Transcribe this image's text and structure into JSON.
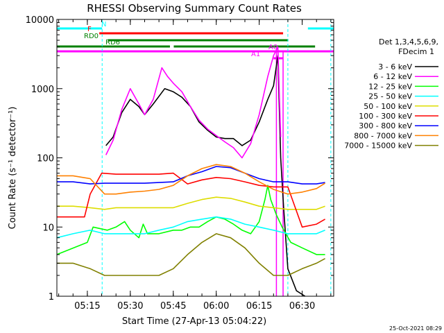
{
  "chart_data": {
    "type": "line",
    "title": "RHESSI Observing Summary Count Rates",
    "xlabel": "Start Time (27-Apr-13 05:04:22)",
    "ylabel": "Count Rate (s⁻¹ detector⁻¹)",
    "yscale": "log",
    "ylim": [
      1,
      10000
    ],
    "xlim": [
      "05:04:22",
      "06:41:00"
    ],
    "x_ticks": [
      "05:15",
      "05:30",
      "05:45",
      "06:00",
      "06:15",
      "06:30"
    ],
    "y_ticks": [
      "1",
      "10",
      "100",
      "1000",
      "10000"
    ],
    "legend_header": [
      "Det 1,3,4,5,6,9,",
      "FDecim 1"
    ],
    "legend_position": "right",
    "footer_date": "25-Oct-2021 08:29",
    "status_bars": [
      {
        "label": "N",
        "color": "#00ffff",
        "segments": [
          [
            "05:04:22",
            "05:20:10"
          ],
          [
            "06:32:00",
            "06:41:00"
          ]
        ]
      },
      {
        "label": "F",
        "color": "#ff0000",
        "segments": [
          [
            "05:19:10",
            "06:23:20"
          ]
        ]
      },
      {
        "label": "RD0",
        "color": "#008000",
        "segments": [
          [
            "05:22:10",
            "06:25:10"
          ]
        ]
      },
      {
        "label": "RD6",
        "color": "#008000",
        "segments": [
          [
            "05:04:22",
            "05:43:50"
          ],
          [
            "05:45:10",
            "06:34:30"
          ]
        ]
      },
      {
        "label": "A1",
        "color": "#ff00ff",
        "segments": [
          [
            "06:20:00",
            "06:23:20"
          ]
        ]
      },
      {
        "label": "A0",
        "color": "#ff00ff",
        "segments": [
          [
            "05:04:22",
            "06:41:00"
          ]
        ]
      }
    ],
    "series": [
      {
        "name": "3 - 6 keV",
        "color": "#000000",
        "points": [
          [
            "05:21:30",
            150
          ],
          [
            "05:24:00",
            200
          ],
          [
            "05:27:00",
            450
          ],
          [
            "05:30:00",
            700
          ],
          [
            "05:33:00",
            550
          ],
          [
            "05:35:00",
            420
          ],
          [
            "05:38:00",
            600
          ],
          [
            "05:42:00",
            1000
          ],
          [
            "05:45:00",
            900
          ],
          [
            "05:48:00",
            750
          ],
          [
            "05:51:00",
            550
          ],
          [
            "05:54:00",
            330
          ],
          [
            "05:57:00",
            250
          ],
          [
            "06:00:00",
            200
          ],
          [
            "06:03:00",
            190
          ],
          [
            "06:06:00",
            190
          ],
          [
            "06:09:00",
            150
          ],
          [
            "06:12:00",
            180
          ],
          [
            "06:15:00",
            330
          ],
          [
            "06:18:00",
            700
          ],
          [
            "06:20:00",
            1100
          ],
          [
            "06:21:30",
            3000
          ],
          [
            "06:22:30",
            100
          ],
          [
            "06:23:30",
            20
          ],
          [
            "06:25:00",
            2.5
          ],
          [
            "06:28:00",
            1.2
          ],
          [
            "06:31:00",
            1.0
          ]
        ]
      },
      {
        "name": "6 - 12 keV",
        "color": "#ff00ff",
        "points": [
          [
            "05:21:30",
            110
          ],
          [
            "05:24:00",
            180
          ],
          [
            "05:27:00",
            500
          ],
          [
            "05:30:00",
            1000
          ],
          [
            "05:33:00",
            600
          ],
          [
            "05:35:00",
            420
          ],
          [
            "05:38:00",
            700
          ],
          [
            "05:41:00",
            2000
          ],
          [
            "05:43:00",
            1500
          ],
          [
            "05:45:00",
            1200
          ],
          [
            "05:48:00",
            900
          ],
          [
            "05:51:00",
            550
          ],
          [
            "05:54:00",
            350
          ],
          [
            "05:57:00",
            260
          ],
          [
            "06:00:00",
            210
          ],
          [
            "06:03:00",
            170
          ],
          [
            "06:06:00",
            140
          ],
          [
            "06:09:00",
            100
          ],
          [
            "06:12:00",
            160
          ],
          [
            "06:15:00",
            420
          ],
          [
            "06:18:00",
            1500
          ],
          [
            "06:20:00",
            3000
          ],
          [
            "06:21:30",
            4000
          ],
          [
            "06:22:30",
            200
          ]
        ]
      },
      {
        "name": "12 - 25 keV",
        "color": "#00ff00",
        "points": [
          [
            "05:04:22",
            4
          ],
          [
            "05:15:00",
            6
          ],
          [
            "05:17:00",
            10
          ],
          [
            "05:22:00",
            9
          ],
          [
            "05:25:00",
            10
          ],
          [
            "05:28:00",
            12
          ],
          [
            "05:30:00",
            9
          ],
          [
            "05:33:00",
            7
          ],
          [
            "05:34:30",
            11
          ],
          [
            "05:36:00",
            8
          ],
          [
            "05:40:00",
            8
          ],
          [
            "05:45:00",
            9
          ],
          [
            "05:48:00",
            9
          ],
          [
            "05:51:00",
            10
          ],
          [
            "05:54:00",
            10
          ],
          [
            "05:57:00",
            12
          ],
          [
            "06:00:00",
            14
          ],
          [
            "06:03:00",
            13
          ],
          [
            "06:06:00",
            11
          ],
          [
            "06:09:00",
            9
          ],
          [
            "06:12:00",
            8
          ],
          [
            "06:15:00",
            12
          ],
          [
            "06:17:00",
            25
          ],
          [
            "06:18:00",
            40
          ],
          [
            "06:19:00",
            25
          ],
          [
            "06:21:00",
            15
          ],
          [
            "06:23:00",
            10
          ],
          [
            "06:26:00",
            6
          ],
          [
            "06:30:00",
            5
          ],
          [
            "06:35:00",
            4
          ],
          [
            "06:38:00",
            4
          ]
        ]
      },
      {
        "name": "25 - 50 keV",
        "color": "#00ffff",
        "points": [
          [
            "05:04:22",
            7
          ],
          [
            "05:10:00",
            8
          ],
          [
            "05:16:00",
            9
          ],
          [
            "05:21:00",
            8
          ],
          [
            "05:25:00",
            8
          ],
          [
            "05:30:00",
            8
          ],
          [
            "05:35:00",
            8
          ],
          [
            "05:40:00",
            9
          ],
          [
            "05:45:00",
            10
          ],
          [
            "05:50:00",
            12
          ],
          [
            "05:55:00",
            13
          ],
          [
            "06:00:00",
            14
          ],
          [
            "06:05:00",
            13
          ],
          [
            "06:10:00",
            11
          ],
          [
            "06:15:00",
            10
          ],
          [
            "06:20:00",
            9
          ],
          [
            "06:25:00",
            8
          ],
          [
            "06:30:00",
            8
          ],
          [
            "06:35:00",
            8
          ],
          [
            "06:38:00",
            9
          ]
        ]
      },
      {
        "name": "50 - 100 keV",
        "color": "#dddd00",
        "points": [
          [
            "05:04:22",
            20
          ],
          [
            "05:10:00",
            20
          ],
          [
            "05:16:00",
            19
          ],
          [
            "05:21:00",
            18
          ],
          [
            "05:25:00",
            19
          ],
          [
            "05:30:00",
            19
          ],
          [
            "05:35:00",
            19
          ],
          [
            "05:40:00",
            19
          ],
          [
            "05:45:00",
            19
          ],
          [
            "05:50:00",
            22
          ],
          [
            "05:55:00",
            25
          ],
          [
            "06:00:00",
            27
          ],
          [
            "06:05:00",
            26
          ],
          [
            "06:10:00",
            23
          ],
          [
            "06:15:00",
            20
          ],
          [
            "06:20:00",
            19
          ],
          [
            "06:25:00",
            18
          ],
          [
            "06:30:00",
            18
          ],
          [
            "06:35:00",
            18
          ],
          [
            "06:38:00",
            20
          ]
        ]
      },
      {
        "name": "100 - 300 keV",
        "color": "#ff0000",
        "points": [
          [
            "05:04:22",
            14
          ],
          [
            "05:10:00",
            14
          ],
          [
            "05:14:00",
            14
          ],
          [
            "05:16:00",
            30
          ],
          [
            "05:20:00",
            60
          ],
          [
            "05:25:00",
            58
          ],
          [
            "05:30:00",
            58
          ],
          [
            "05:35:00",
            58
          ],
          [
            "05:40:00",
            58
          ],
          [
            "05:45:00",
            60
          ],
          [
            "05:50:00",
            42
          ],
          [
            "05:55:00",
            48
          ],
          [
            "06:00:00",
            52
          ],
          [
            "06:05:00",
            50
          ],
          [
            "06:10:00",
            45
          ],
          [
            "06:15:00",
            40
          ],
          [
            "06:20:00",
            38
          ],
          [
            "06:25:00",
            38
          ],
          [
            "06:30:00",
            10
          ],
          [
            "06:35:00",
            11
          ],
          [
            "06:38:00",
            13
          ]
        ]
      },
      {
        "name": "300 - 800 keV",
        "color": "#0000ff",
        "points": [
          [
            "05:04:22",
            45
          ],
          [
            "05:10:00",
            45
          ],
          [
            "05:16:00",
            42
          ],
          [
            "05:21:00",
            43
          ],
          [
            "05:25:00",
            43
          ],
          [
            "05:30:00",
            43
          ],
          [
            "05:35:00",
            43
          ],
          [
            "05:40:00",
            44
          ],
          [
            "05:45:00",
            45
          ],
          [
            "05:50:00",
            55
          ],
          [
            "05:55:00",
            63
          ],
          [
            "06:00:00",
            75
          ],
          [
            "06:05:00",
            72
          ],
          [
            "06:10:00",
            60
          ],
          [
            "06:15:00",
            50
          ],
          [
            "06:20:00",
            45
          ],
          [
            "06:25:00",
            45
          ],
          [
            "06:30:00",
            42
          ],
          [
            "06:35:00",
            42
          ],
          [
            "06:38:00",
            44
          ]
        ]
      },
      {
        "name": "800 - 7000 keV",
        "color": "#ff8000",
        "points": [
          [
            "05:04:22",
            55
          ],
          [
            "05:10:00",
            55
          ],
          [
            "05:16:00",
            50
          ],
          [
            "05:21:00",
            30
          ],
          [
            "05:25:00",
            30
          ],
          [
            "05:30:00",
            32
          ],
          [
            "05:35:00",
            33
          ],
          [
            "05:40:00",
            35
          ],
          [
            "05:45:00",
            40
          ],
          [
            "05:50:00",
            55
          ],
          [
            "05:55:00",
            70
          ],
          [
            "06:00:00",
            80
          ],
          [
            "06:05:00",
            75
          ],
          [
            "06:10:00",
            60
          ],
          [
            "06:15:00",
            45
          ],
          [
            "06:20:00",
            35
          ],
          [
            "06:25:00",
            30
          ],
          [
            "06:30:00",
            32
          ],
          [
            "06:35:00",
            36
          ],
          [
            "06:38:00",
            43
          ]
        ]
      },
      {
        "name": "7000 - 15000 keV",
        "color": "#808000",
        "points": [
          [
            "05:04:22",
            3
          ],
          [
            "05:10:00",
            3
          ],
          [
            "05:16:00",
            2.5
          ],
          [
            "05:21:00",
            2
          ],
          [
            "05:25:00",
            2
          ],
          [
            "05:30:00",
            2
          ],
          [
            "05:35:00",
            2
          ],
          [
            "05:40:00",
            2
          ],
          [
            "05:45:00",
            2.5
          ],
          [
            "05:50:00",
            4
          ],
          [
            "05:55:00",
            6
          ],
          [
            "06:00:00",
            8
          ],
          [
            "06:05:00",
            7
          ],
          [
            "06:10:00",
            5
          ],
          [
            "06:15:00",
            3
          ],
          [
            "06:20:00",
            2
          ],
          [
            "06:25:00",
            2
          ],
          [
            "06:30:00",
            2.5
          ],
          [
            "06:35:00",
            3
          ],
          [
            "06:38:00",
            3.5
          ]
        ]
      }
    ]
  }
}
